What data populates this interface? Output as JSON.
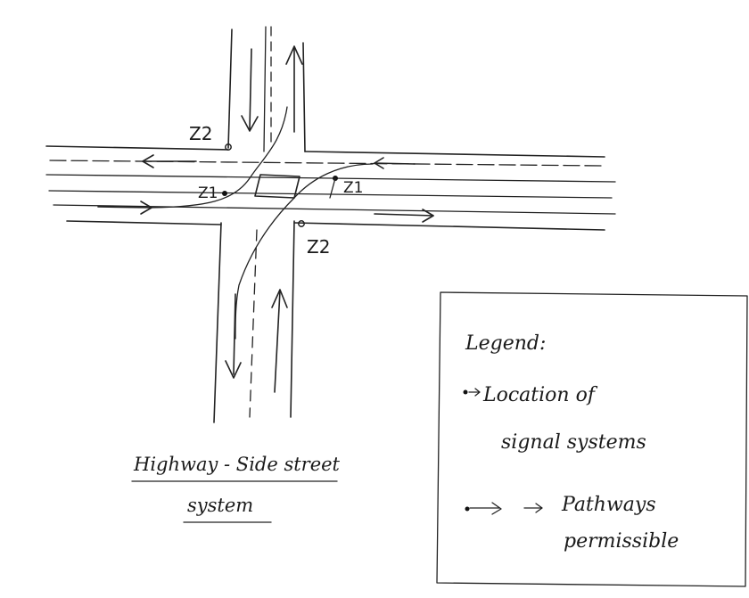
{
  "signals": [
    {
      "label": "Z2"
    },
    {
      "label": "Z1"
    },
    {
      "label": "Z1"
    },
    {
      "label": "Z2"
    }
  ],
  "caption": {
    "line1": "Highway - Side street",
    "line2": "system"
  },
  "legend": {
    "title": "Legend:",
    "item1_line1": "Location of",
    "item1_line2": "signal systems",
    "item2_line1": "Pathways",
    "item2_line2": "permissible"
  }
}
